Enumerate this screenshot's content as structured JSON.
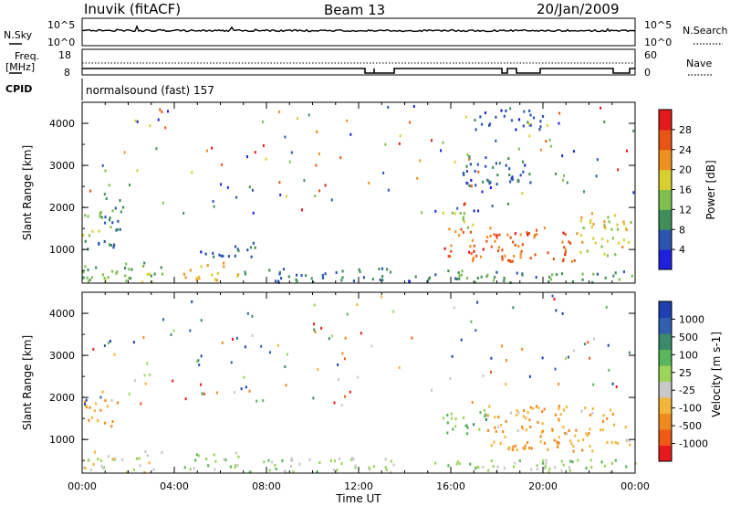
{
  "header": {
    "station": "Inuvik (fitACF)",
    "beam": "Beam 13",
    "date": "20/Jan/2009"
  },
  "top_panels": {
    "nsky_label": "N.Sky",
    "nsky_ticks": [
      "10^5",
      "10^0"
    ],
    "nsearch_label": "N.Search",
    "nsearch_ticks": [
      "10^5",
      "10^0"
    ],
    "freq_label_top": "Freq.",
    "freq_label_unit": "[MHz]",
    "freq_ticks": [
      "18",
      "8"
    ],
    "nave_label": "Nave",
    "nave_ticks": [
      "60",
      "0"
    ],
    "cpid_label": "CPID",
    "cpid_text": "normalsound (fast) 157"
  },
  "colors": {
    "power_scale": [
      "#1f1fe0",
      "#2a55b0",
      "#3f8f5a",
      "#7fbf4f",
      "#d7cf30",
      "#f09020",
      "#e85515",
      "#e21a1a"
    ],
    "velocity_scale": [
      "#e8191a",
      "#ef5a16",
      "#f08a1e",
      "#f3b53a",
      "#c8c8c8",
      "#9dd45a",
      "#59b65a",
      "#3b8a6b",
      "#2f5fae",
      "#1f3fb0"
    ],
    "axes": "#000000",
    "background": "#ffffff"
  },
  "chart_data": [
    {
      "type": "heatmap",
      "name": "power",
      "ylabel": "Slant Range [km]",
      "yticks": [
        "1000",
        "2000",
        "3000",
        "4000"
      ],
      "ylim": [
        200,
        4500
      ],
      "xticks": [
        "00:00",
        "04:00",
        "08:00",
        "12:00",
        "16:00",
        "20:00",
        "00:00"
      ],
      "xlim_hours": [
        0,
        24
      ],
      "colorbar_label": "Power [dB]",
      "colorbar_ticks": [
        "4",
        "8",
        "12",
        "16",
        "20",
        "24",
        "28"
      ],
      "colorbar_range": [
        0,
        32
      ],
      "regions": [
        {
          "t": [
            0.0,
            0.8
          ],
          "r": [
            1300,
            1900
          ],
          "v": 18
        },
        {
          "t": [
            0.8,
            2.0
          ],
          "r": [
            1400,
            2200
          ],
          "v": 10
        },
        {
          "t": [
            0.0,
            1.5
          ],
          "r": [
            900,
            1200
          ],
          "v": 8
        },
        {
          "t": [
            0.0,
            3.5
          ],
          "r": [
            200,
            700
          ],
          "v": 14
        },
        {
          "t": [
            4.3,
            6.8
          ],
          "r": [
            250,
            700
          ],
          "v": 20
        },
        {
          "t": [
            5.0,
            7.5
          ],
          "r": [
            800,
            1200
          ],
          "v": 7
        },
        {
          "t": [
            7.0,
            13.5
          ],
          "r": [
            200,
            550
          ],
          "v": 8
        },
        {
          "t": [
            13.5,
            15.5
          ],
          "r": [
            200,
            400
          ],
          "v": 6
        },
        {
          "t": [
            15.6,
            21.5
          ],
          "r": [
            700,
            1500
          ],
          "v": 25
        },
        {
          "t": [
            15.6,
            17.0
          ],
          "r": [
            1500,
            1900
          ],
          "v": 16
        },
        {
          "t": [
            21.5,
            23.8
          ],
          "r": [
            800,
            1800
          ],
          "v": 18
        },
        {
          "t": [
            15.0,
            24.0
          ],
          "r": [
            200,
            500
          ],
          "v": 10
        },
        {
          "t": [
            16.5,
            19.5
          ],
          "r": [
            2400,
            3200
          ],
          "v": 6
        },
        {
          "t": [
            17.0,
            20.0
          ],
          "r": [
            3800,
            4300
          ],
          "v": 5
        }
      ]
    },
    {
      "type": "heatmap",
      "name": "velocity",
      "ylabel": "Slant Range [km]",
      "yticks": [
        "1000",
        "2000",
        "3000",
        "4000"
      ],
      "ylim": [
        200,
        4500
      ],
      "xticks": [
        "00:00",
        "04:00",
        "08:00",
        "12:00",
        "16:00",
        "20:00",
        "00:00"
      ],
      "xlabel": "Time UT",
      "xlim_hours": [
        0,
        24
      ],
      "colorbar_label": "Velocity [m s-1]",
      "colorbar_ticks": [
        "-1000",
        "-500",
        "-100",
        "-25",
        "25",
        "100",
        "500",
        "1000"
      ],
      "colorbar_range": [
        -1200,
        1200
      ],
      "regions": [
        {
          "t": [
            0.0,
            1.5
          ],
          "r": [
            1300,
            2200
          ],
          "v": -450
        },
        {
          "t": [
            0.0,
            3.5
          ],
          "r": [
            200,
            700
          ],
          "v": -150
        },
        {
          "t": [
            4.3,
            6.8
          ],
          "r": [
            250,
            700
          ],
          "v": 60
        },
        {
          "t": [
            7.0,
            13.5
          ],
          "r": [
            200,
            550
          ],
          "v": 50
        },
        {
          "t": [
            15.6,
            17.5
          ],
          "r": [
            1100,
            1700
          ],
          "v": 300
        },
        {
          "t": [
            17.5,
            23.8
          ],
          "r": [
            700,
            1800
          ],
          "v": -450
        },
        {
          "t": [
            15.0,
            24.0
          ],
          "r": [
            200,
            500
          ],
          "v": 80
        }
      ]
    }
  ],
  "top_series": {
    "nsky_level": 0.55,
    "nsearch_level": 0.6,
    "freq_mhz": 10.5,
    "nave_level": 0.25
  }
}
